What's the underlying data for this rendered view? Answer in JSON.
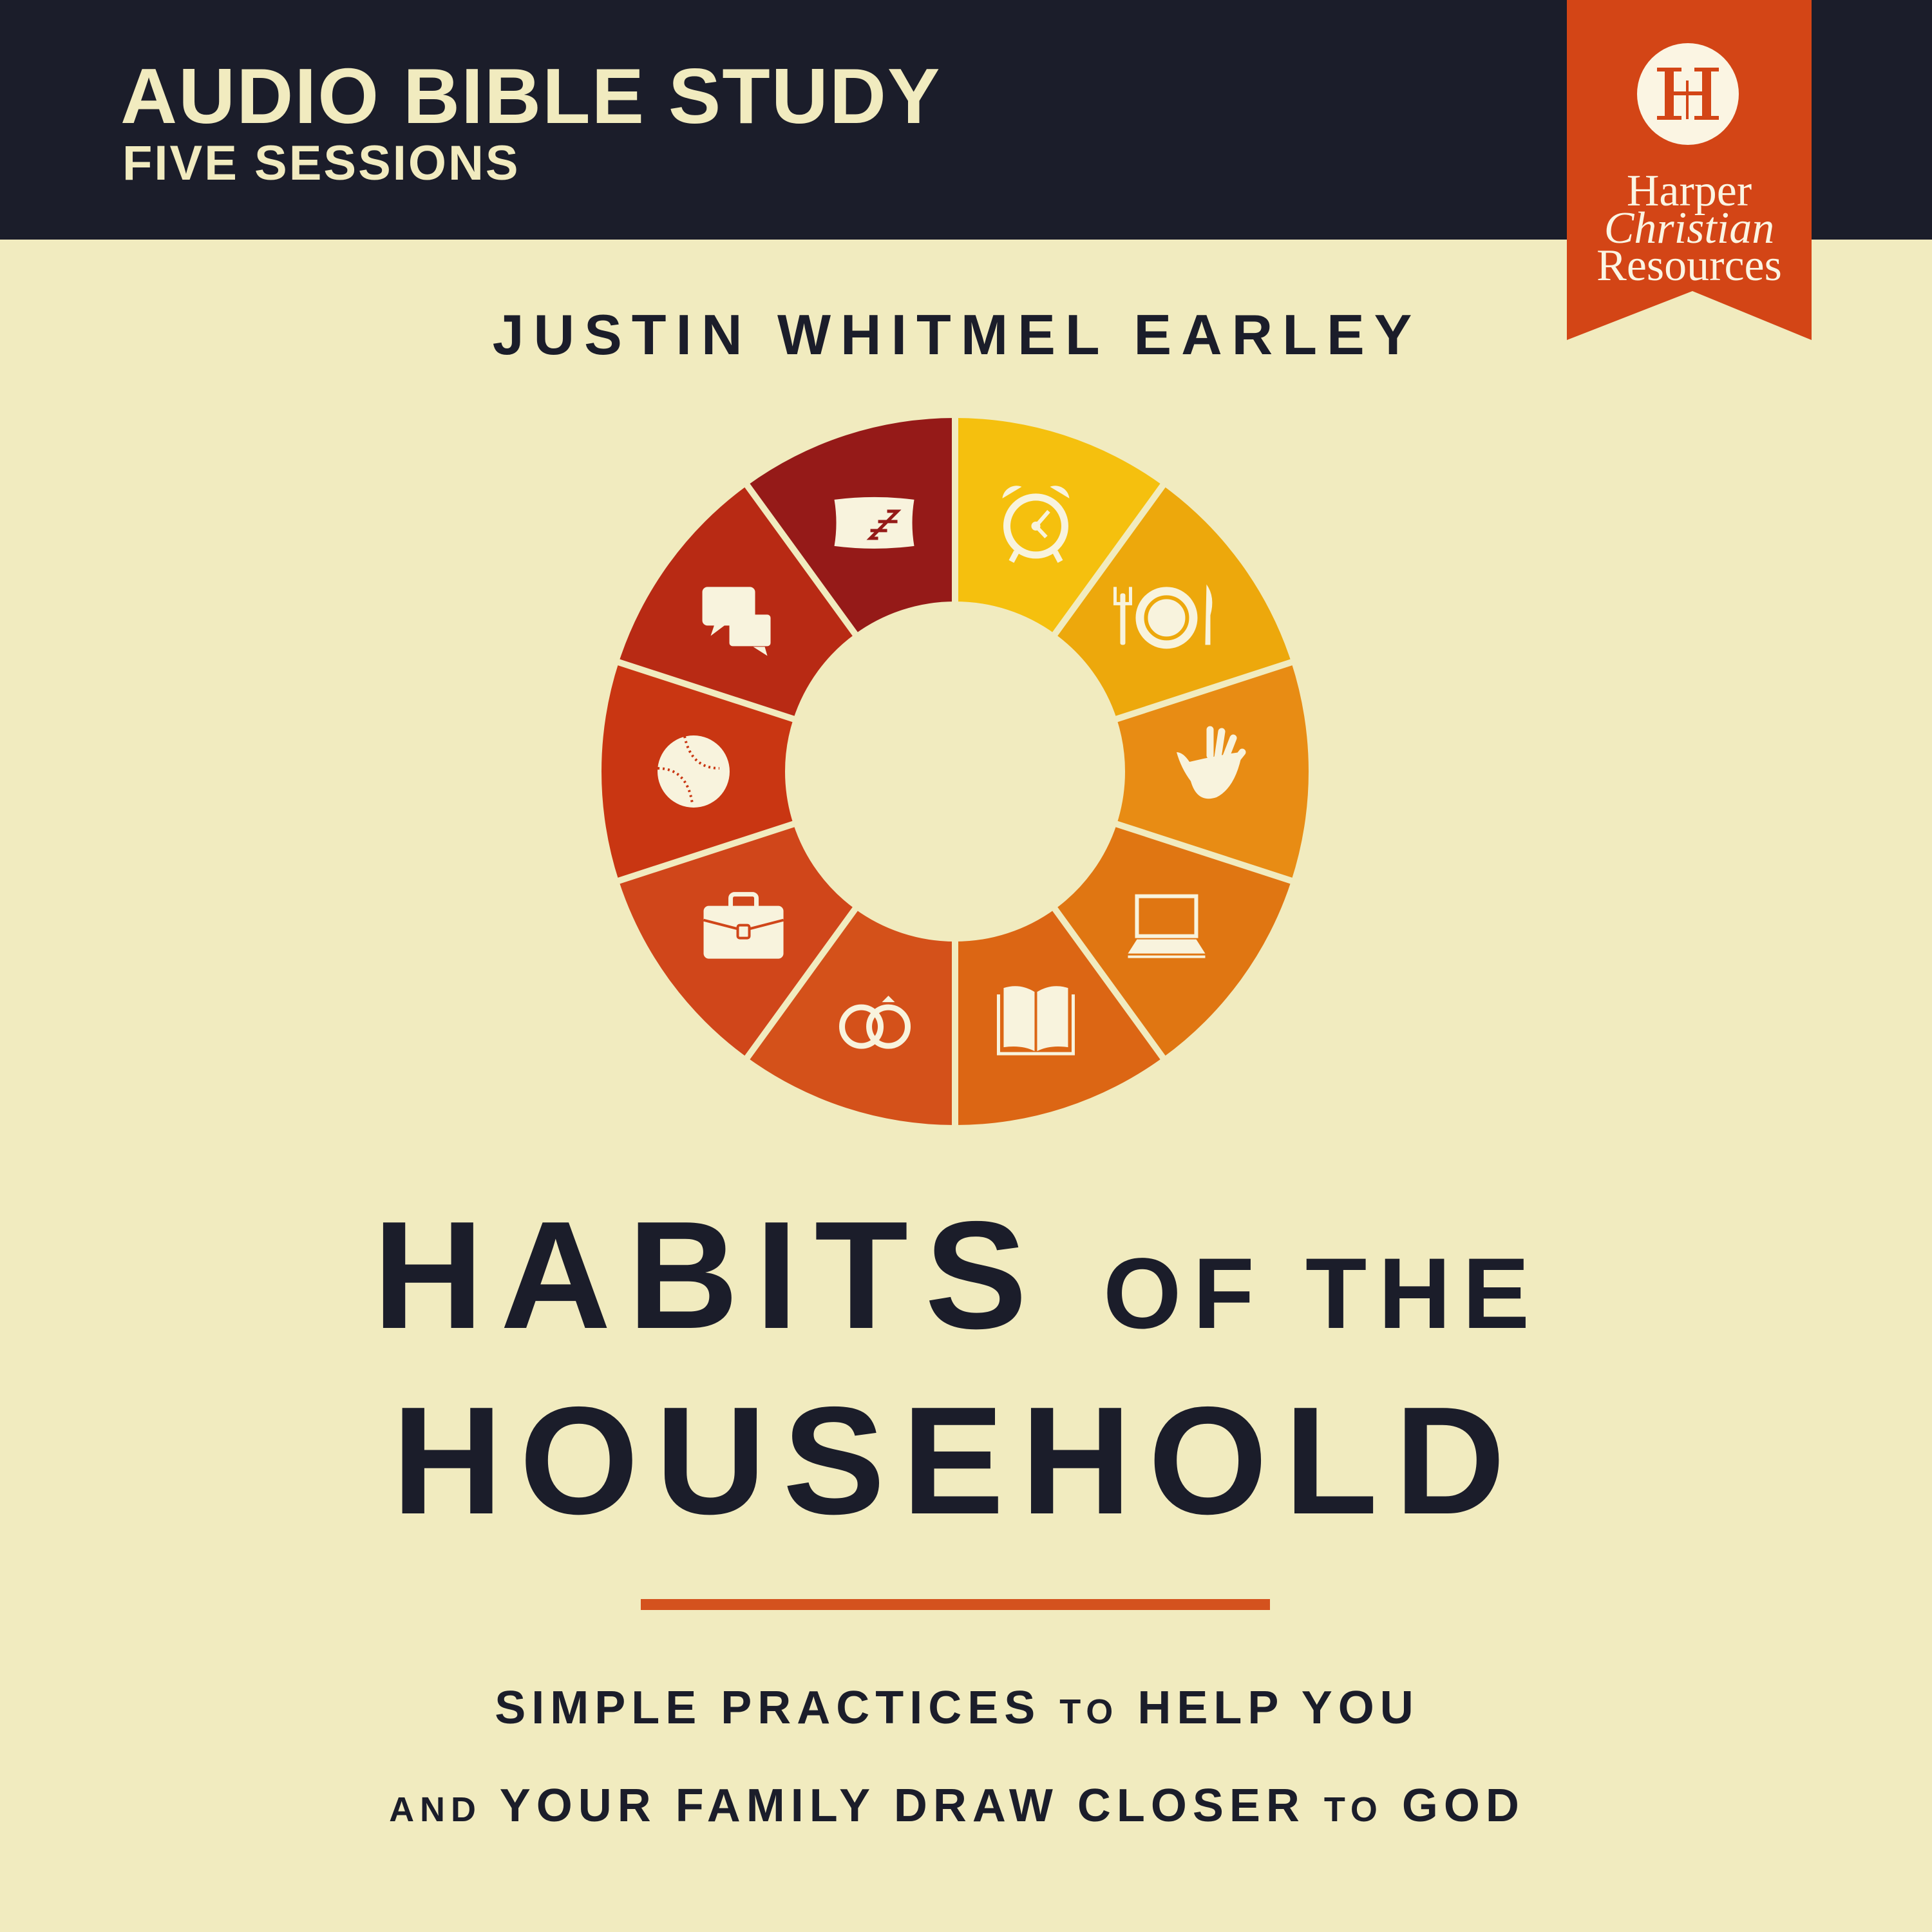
{
  "header": {
    "series": "AUDIO BIBLE STUDY",
    "sessions": "FIVE SESSIONS",
    "background": "#1B1D2A"
  },
  "publisher": {
    "logo_mark": "HH",
    "line1": "Harper",
    "line2": "Christian",
    "line3": "Resources",
    "color": "#D34516"
  },
  "author": "JUSTIN WHITMEL EARLEY",
  "title": {
    "word1": "HABITS",
    "word2": "OF THE",
    "word3": "HOUSEHOLD"
  },
  "subtitle": {
    "l1a": "SIMPLE PRACTICES",
    "l1b": "TO",
    "l1c": "HELP YOU",
    "l2a": "AND",
    "l2b": "YOUR FAMILY DRAW CLOSER",
    "l2c": "TO",
    "l2d": "GOD"
  },
  "wheel": {
    "segments": [
      {
        "icon": "alarm-clock-icon",
        "color": "#F5C00E"
      },
      {
        "icon": "dinner-plate-icon",
        "color": "#EDA80C"
      },
      {
        "icon": "hands-icon",
        "color": "#E88C14"
      },
      {
        "icon": "laptop-icon",
        "color": "#E07612"
      },
      {
        "icon": "open-book-icon",
        "color": "#DC6614"
      },
      {
        "icon": "wedding-rings-icon",
        "color": "#D4511A"
      },
      {
        "icon": "briefcase-icon",
        "color": "#D0461A"
      },
      {
        "icon": "baseball-icon",
        "color": "#C93612"
      },
      {
        "icon": "speech-bubbles-icon",
        "color": "#B82A14"
      },
      {
        "icon": "pillow-sleep-icon",
        "color": "#951A18"
      }
    ]
  },
  "colors": {
    "background": "#F1EBBF",
    "ink": "#1B1D2A",
    "accent": "#D4521E",
    "icon": "#F8F3DD"
  }
}
